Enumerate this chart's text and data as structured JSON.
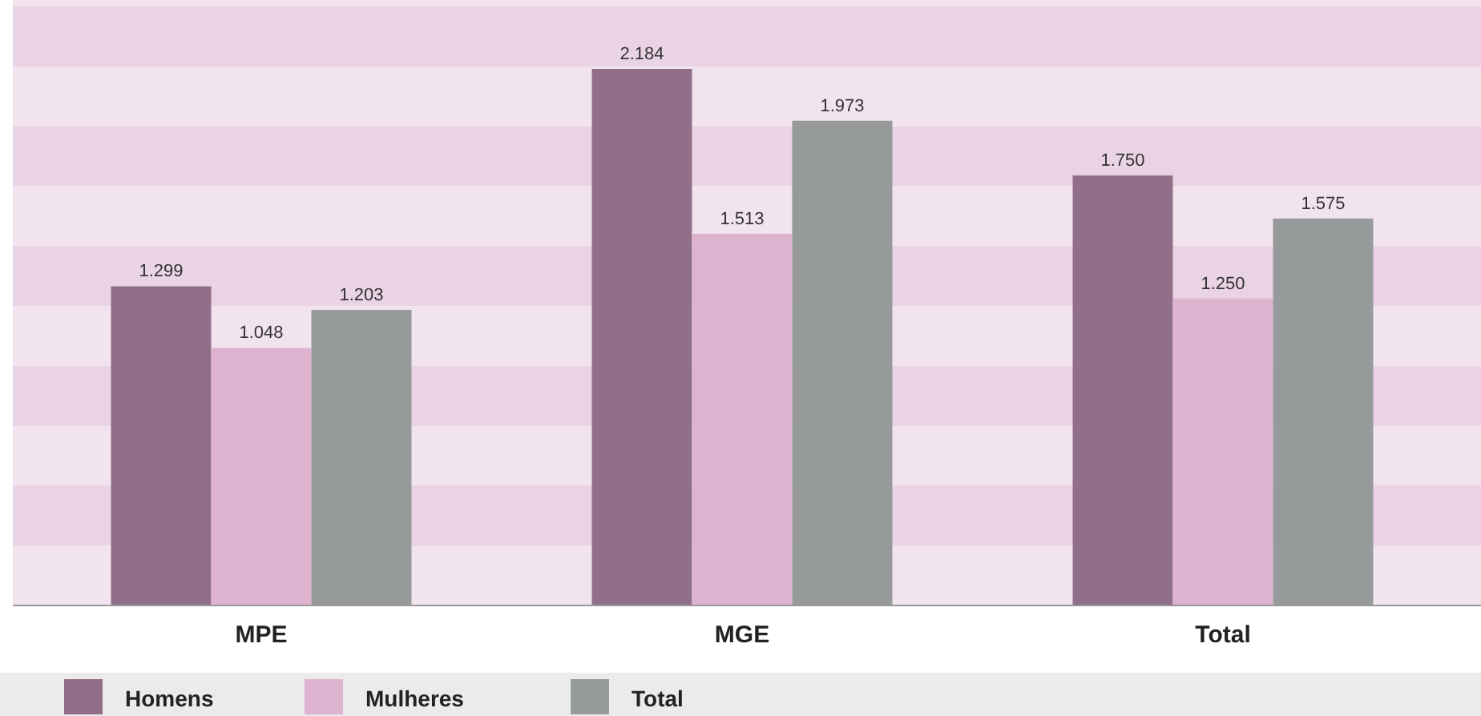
{
  "chart_data": {
    "type": "bar",
    "categories": [
      "MPE",
      "MGE",
      "Total"
    ],
    "legend": "bottom",
    "series": [
      {
        "name": "Homens",
        "color": "#916f88",
        "values": [
          1299,
          2184,
          1750
        ],
        "value_labels": [
          "1.299",
          "2.184",
          "1.750"
        ]
      },
      {
        "name": "Mulheres",
        "color": "#deb3d0",
        "values": [
          1048,
          1513,
          1250
        ],
        "value_labels": [
          "1.048",
          "1.513",
          "1.250"
        ]
      },
      {
        "name": "Total",
        "color": "#979a9a",
        "values": [
          1203,
          1973,
          1575
        ],
        "value_labels": [
          "1.203",
          "1.973",
          "1.575"
        ]
      }
    ]
  }
}
